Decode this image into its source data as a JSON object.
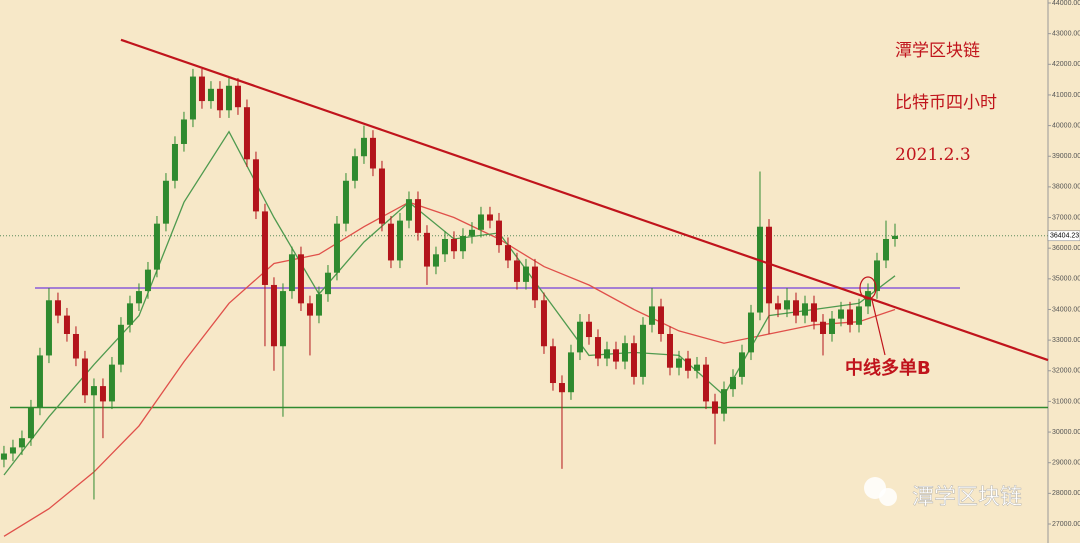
{
  "chart_data": {
    "type": "candlestick",
    "annotations": [
      "潭学区块链",
      "比特币四小时",
      "2021.2.3",
      "中线多单B"
    ],
    "watermark": "潭学区块链",
    "last_price": {
      "value": 36404.23,
      "label": "36404.23"
    },
    "colors": {
      "up": "#2f8a2f",
      "down": "#b3141b",
      "background": "#f7e8c8"
    },
    "xlim": [
      -0.44,
      116
    ],
    "ylim": [
      26380,
      44098
    ],
    "yticks": [
      {
        "value": 27000,
        "label": "27000.00"
      },
      {
        "value": 28000,
        "label": "28000.00"
      },
      {
        "value": 29000,
        "label": "29000.00"
      },
      {
        "value": 30000,
        "label": "30000.00"
      },
      {
        "value": 31000,
        "label": "31000.00"
      },
      {
        "value": 32000,
        "label": "32000.00"
      },
      {
        "value": 33000,
        "label": "33000.00"
      },
      {
        "value": 34000,
        "label": "34000.00"
      },
      {
        "value": 35000,
        "label": "35000.00"
      },
      {
        "value": 36000,
        "label": "36000.00"
      },
      {
        "value": 37000,
        "label": "37000.00"
      },
      {
        "value": 38000,
        "label": "38000.00"
      },
      {
        "value": 39000,
        "label": "39000.00"
      },
      {
        "value": 40000,
        "label": "40000.00"
      },
      {
        "value": 41000,
        "label": "41000.00"
      },
      {
        "value": 42000,
        "label": "42000.00"
      },
      {
        "value": 43000,
        "label": "43000.00"
      },
      {
        "value": 44000,
        "label": "44000.00"
      }
    ],
    "open": [
      29100,
      29300,
      29500,
      29800,
      30800,
      32500,
      34300,
      33800,
      33200,
      32400,
      31200,
      31500,
      31000,
      32200,
      33500,
      34200,
      34600,
      35300,
      36800,
      38200,
      39400,
      40200,
      41600,
      40800,
      41200,
      40500,
      41300,
      40600,
      38900,
      37200,
      34800,
      32800,
      34600,
      35800,
      34200,
      33800,
      34500,
      35200,
      36800,
      38200,
      39000,
      39600,
      38600,
      36800,
      35600,
      36900,
      37600,
      36500,
      35400,
      35800,
      36300,
      35900,
      36400,
      36600,
      37100,
      36900,
      36100,
      35600,
      34900,
      35400,
      34300,
      32800,
      31600,
      31300,
      32600,
      33600,
      33100,
      32400,
      32700,
      32300,
      32900,
      31800,
      33500,
      34100,
      33200,
      32100,
      32400,
      32000,
      32200,
      31000,
      30600,
      31400,
      31800,
      32600,
      33900,
      36700,
      34200,
      34000,
      34300,
      33800,
      34200,
      33600,
      33200,
      33700,
      34000,
      33500,
      34100,
      34600,
      35600,
      36300
    ],
    "high": [
      29550,
      29750,
      30050,
      31050,
      32750,
      34700,
      34550,
      34050,
      33450,
      32650,
      31750,
      31750,
      32450,
      33750,
      34450,
      34850,
      35550,
      37050,
      38450,
      39650,
      40450,
      41850,
      41850,
      41450,
      41450,
      41550,
      41550,
      40850,
      39150,
      37450,
      35050,
      34850,
      36050,
      36050,
      34450,
      34750,
      35450,
      37050,
      38450,
      39250,
      40000,
      39850,
      38850,
      37050,
      37150,
      37850,
      37850,
      36750,
      36050,
      36550,
      36550,
      36650,
      36850,
      37350,
      37350,
      37150,
      36350,
      35850,
      35650,
      35650,
      34550,
      33050,
      31850,
      32850,
      33850,
      33850,
      33350,
      32950,
      32950,
      33150,
      33150,
      33750,
      34700,
      34350,
      33450,
      32650,
      32650,
      32450,
      32450,
      31250,
      31650,
      32050,
      32850,
      34150,
      38500,
      36950,
      34450,
      34700,
      34550,
      34450,
      34450,
      33850,
      33950,
      34250,
      34250,
      34350,
      34850,
      35850,
      36900,
      36800
    ],
    "low": [
      28850,
      29050,
      29250,
      29550,
      30550,
      32250,
      33550,
      32950,
      32150,
      30950,
      27800,
      29800,
      30750,
      31950,
      33250,
      33950,
      34350,
      35050,
      36550,
      37950,
      39150,
      39950,
      40550,
      40550,
      40250,
      40250,
      40350,
      38650,
      36950,
      32800,
      32000,
      30500,
      34350,
      33950,
      32500,
      33550,
      34250,
      34950,
      36550,
      37950,
      38750,
      38350,
      36550,
      35350,
      35350,
      36650,
      36250,
      34800,
      35150,
      35550,
      35650,
      35650,
      36150,
      36350,
      36650,
      35850,
      35350,
      34650,
      34650,
      34050,
      32550,
      31350,
      28800,
      31050,
      32350,
      32850,
      32150,
      32150,
      32050,
      32050,
      31550,
      31550,
      33250,
      32950,
      31850,
      31850,
      31750,
      31750,
      30750,
      29600,
      30350,
      31150,
      31550,
      32350,
      33650,
      33200,
      33750,
      33750,
      33550,
      33550,
      33350,
      32500,
      32950,
      33450,
      33250,
      33250,
      33850,
      34350,
      35350,
      36050
    ],
    "close": [
      29300,
      29500,
      29800,
      30800,
      32500,
      34300,
      33800,
      33200,
      32400,
      31200,
      31500,
      31000,
      32200,
      33500,
      34200,
      34600,
      35300,
      36800,
      38200,
      39400,
      40200,
      41600,
      40800,
      41200,
      40500,
      41300,
      40600,
      38900,
      37200,
      34800,
      32800,
      34600,
      35800,
      34200,
      33800,
      34500,
      35200,
      36800,
      38200,
      39000,
      39600,
      38600,
      36800,
      35600,
      36900,
      37600,
      36500,
      35400,
      35800,
      36300,
      35900,
      36400,
      36600,
      37100,
      36900,
      36100,
      35600,
      34900,
      35400,
      34300,
      32800,
      31600,
      31300,
      32600,
      33600,
      33100,
      32400,
      32700,
      32300,
      32900,
      31800,
      33500,
      34100,
      33200,
      32100,
      32400,
      32000,
      32200,
      31000,
      30600,
      31400,
      31800,
      32600,
      33900,
      36700,
      34200,
      34000,
      34300,
      33800,
      34200,
      33600,
      33200,
      33700,
      34000,
      33500,
      34100,
      34600,
      35600,
      36300,
      36404
    ],
    "ma_index": [
      0,
      5,
      10,
      15,
      20,
      25,
      30,
      35,
      40,
      45,
      50,
      55,
      60,
      65,
      70,
      75,
      80,
      85,
      90,
      95,
      99
    ],
    "ma_fast": {
      "color": "#4f9a4f",
      "values": [
        28600,
        30500,
        32200,
        33800,
        37500,
        39800,
        37000,
        34500,
        36200,
        37500,
        36300,
        36500,
        34500,
        32500,
        32600,
        32500,
        31200,
        33800,
        34000,
        34200,
        35100
      ]
    },
    "ma_slow": {
      "color": "#e0504a",
      "values": [
        26600,
        27500,
        28700,
        30200,
        32300,
        34200,
        35500,
        35800,
        36700,
        37500,
        37000,
        36300,
        35400,
        34800,
        34000,
        33300,
        32900,
        33200,
        33500,
        33600,
        34000
      ]
    },
    "trendline": {
      "color": "#c0141c",
      "start": [
        13,
        42800
      ],
      "end": [
        116,
        32350
      ]
    },
    "levels": [
      {
        "value": 34700,
        "color": "#8a5ad8"
      },
      {
        "value": 30800,
        "color": "#2f8a2f"
      }
    ]
  }
}
